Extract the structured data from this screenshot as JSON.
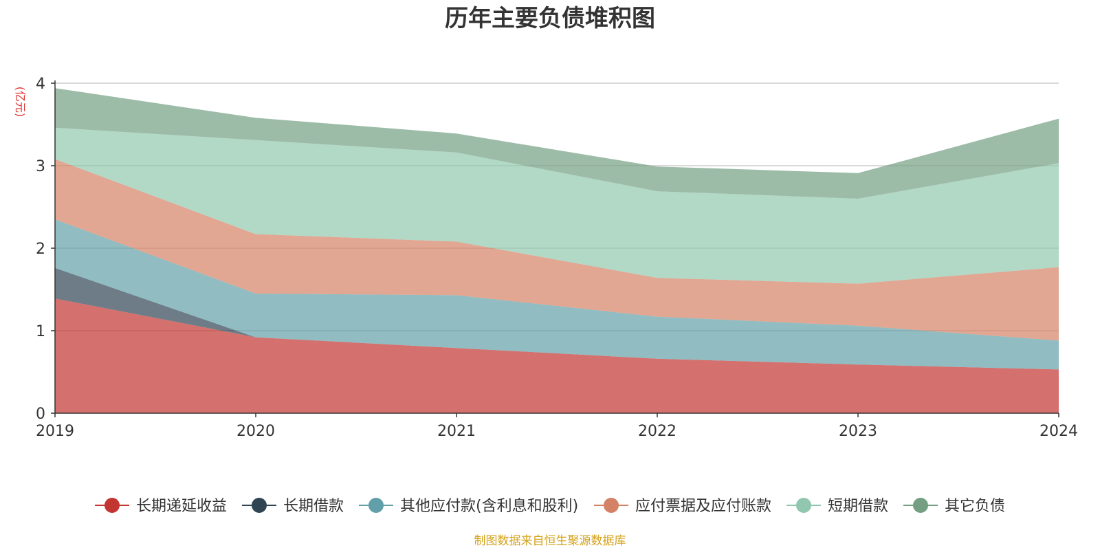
{
  "chart_data": {
    "type": "area",
    "stacked": true,
    "title": "历年主要负债堆积图",
    "unit_label": "(亿元)",
    "x": [
      "2019",
      "2020",
      "2021",
      "2022",
      "2023",
      "2024"
    ],
    "ylim": [
      0,
      4
    ],
    "yticks": [
      0,
      1,
      2,
      3,
      4
    ],
    "grid": true,
    "legend_position": "bottom",
    "series": [
      {
        "name": "长期递延收益",
        "color": "#c23531",
        "values": [
          1.39,
          0.92,
          0.79,
          0.66,
          0.59,
          0.53
        ]
      },
      {
        "name": "长期借款",
        "color": "#2f4554",
        "values": [
          0.37,
          0,
          0,
          0,
          0,
          0
        ]
      },
      {
        "name": "其他应付款(含利息和股利)",
        "color": "#61a0a8",
        "values": [
          0.59,
          0.53,
          0.64,
          0.51,
          0.47,
          0.35
        ]
      },
      {
        "name": "应付票据及应付账款",
        "color": "#d48265",
        "values": [
          0.73,
          0.72,
          0.65,
          0.47,
          0.51,
          0.89
        ]
      },
      {
        "name": "短期借款",
        "color": "#91c7ae",
        "values": [
          0.38,
          1.14,
          1.08,
          1.05,
          1.03,
          1.26
        ]
      },
      {
        "name": "其它负债",
        "color": "#749f83",
        "values": [
          0.48,
          0.27,
          0.23,
          0.3,
          0.31,
          0.54
        ]
      }
    ]
  },
  "source_note": "制图数据来自恒生聚源数据库"
}
